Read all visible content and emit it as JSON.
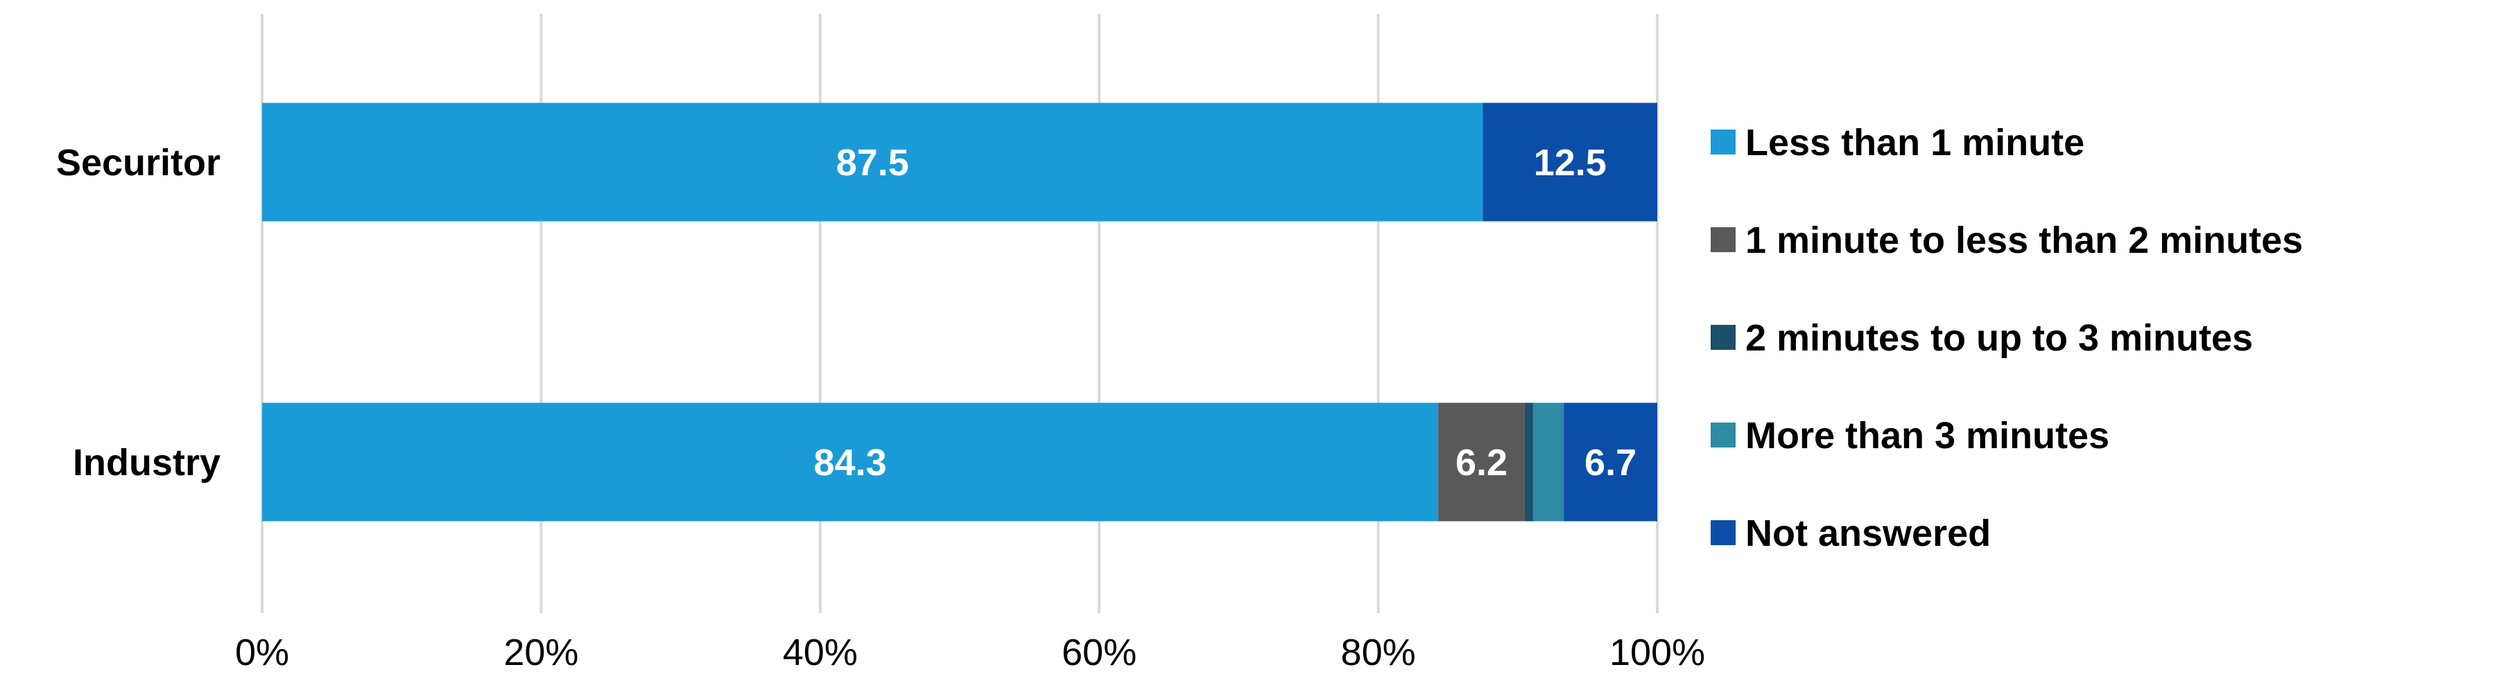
{
  "chart_data": {
    "type": "bar",
    "orientation": "horizontal",
    "stacked": true,
    "percent_stacked": true,
    "categories": [
      "Securitor",
      "Industry"
    ],
    "series": [
      {
        "name": "Less than 1 minute",
        "color": "#1a9bd7",
        "values": [
          87.5,
          84.3
        ],
        "labels": [
          "87.5",
          "84.3"
        ]
      },
      {
        "name": "1 minute to less than 2 minutes",
        "color": "#595959",
        "values": [
          0,
          6.2
        ],
        "labels": [
          "",
          "6.2"
        ]
      },
      {
        "name": "2 minutes to up to 3 minutes",
        "color": "#1b4f6b",
        "values": [
          0,
          0.6
        ],
        "labels": [
          "",
          ""
        ]
      },
      {
        "name": "More than 3 minutes",
        "color": "#2e8ba6",
        "values": [
          0,
          2.2
        ],
        "labels": [
          "",
          ""
        ]
      },
      {
        "name": "Not answered",
        "color": "#0b4ea8",
        "values": [
          12.5,
          6.7
        ],
        "labels": [
          "12.5",
          "6.7"
        ]
      }
    ],
    "xlim": [
      0,
      100
    ],
    "x_ticks": [
      "0%",
      "20%",
      "40%",
      "60%",
      "80%",
      "100%"
    ],
    "title": "",
    "xlabel": "",
    "ylabel": "",
    "grid": true,
    "legend_position": "right"
  }
}
